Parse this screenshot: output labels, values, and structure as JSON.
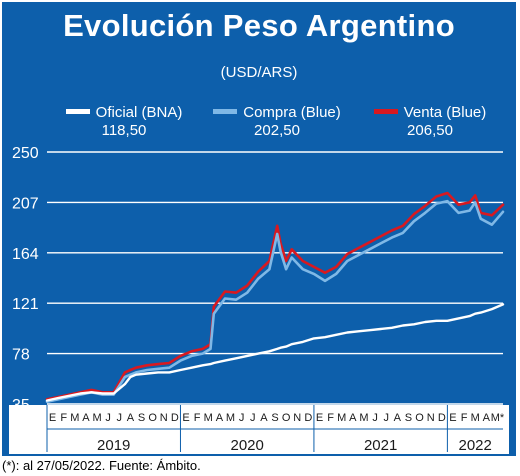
{
  "header": {
    "title": "Evolución Peso Argentino"
  },
  "unit_label": "(USD/ARS)",
  "legend": [
    {
      "name": "Oficial (BNA)",
      "value": "118,50",
      "color": "#ffffff"
    },
    {
      "name": "Compra (Blue)",
      "value": "202,50",
      "color": "#7fb8e6"
    },
    {
      "name": "Venta (Blue)",
      "value": "206,50",
      "color": "#d81920"
    }
  ],
  "footnote": "(*): al 27/05/2022. Fuente: Ámbito.",
  "chart_data": {
    "type": "line",
    "title": "Evolución Peso Argentino",
    "ylabel": "(USD/ARS)",
    "ylim": [
      35,
      250
    ],
    "yticks": [
      35,
      78,
      121,
      164,
      207,
      250
    ],
    "grid": true,
    "legend_position": "top",
    "month_labels": [
      "E",
      "F",
      "M",
      "A",
      "M",
      "J",
      "J",
      "A",
      "S",
      "O",
      "N",
      "D",
      "E",
      "F",
      "M",
      "A",
      "M",
      "J",
      "J",
      "A",
      "S",
      "O",
      "N",
      "D",
      "E",
      "F",
      "M",
      "A",
      "M",
      "J",
      "J",
      "A",
      "S",
      "O",
      "N",
      "D",
      "E",
      "F",
      "M",
      "A",
      "M*"
    ],
    "years": [
      {
        "label": "2019",
        "start": 0,
        "end": 12
      },
      {
        "label": "2020",
        "start": 12,
        "end": 24
      },
      {
        "label": "2021",
        "start": 24,
        "end": 36
      },
      {
        "label": "2022",
        "start": 36,
        "end": 41
      }
    ],
    "x": [
      0,
      1,
      2,
      3,
      4,
      5,
      6,
      7,
      7.5,
      8,
      9,
      10,
      11,
      12,
      13,
      14,
      14.7,
      15,
      16,
      17,
      18,
      19,
      20,
      20.7,
      21,
      21.5,
      22,
      23,
      24,
      25,
      26,
      27,
      28,
      29,
      30,
      31,
      32,
      33,
      34,
      35,
      36,
      37,
      38,
      38.5,
      39,
      40,
      41
    ],
    "series": [
      {
        "name": "Oficial (BNA)",
        "color": "#ffffff",
        "values": [
          38,
          40,
          42,
          44,
          45,
          44,
          44,
          52,
          58,
          60,
          61,
          62,
          62,
          64,
          66,
          68,
          69,
          70,
          72,
          74,
          76,
          78,
          80,
          82,
          83,
          84,
          86,
          88,
          91,
          92,
          94,
          96,
          97,
          98,
          99,
          100,
          102,
          103,
          105,
          106,
          106,
          108,
          110,
          112,
          113,
          116,
          120
        ]
      },
      {
        "name": "Compra (Blue)",
        "color": "#7fb8e6",
        "values": [
          37,
          39,
          41,
          43,
          45,
          43,
          43,
          58,
          60,
          62,
          64,
          65,
          66,
          72,
          76,
          78,
          82,
          112,
          125,
          124,
          130,
          142,
          150,
          180,
          165,
          150,
          160,
          150,
          146,
          140,
          146,
          157,
          162,
          167,
          172,
          177,
          181,
          191,
          198,
          206,
          208,
          198,
          200,
          207,
          193,
          188,
          199
        ]
      },
      {
        "name": "Venta (Blue)",
        "color": "#d81920",
        "values": [
          39,
          41,
          43,
          45,
          47,
          45,
          45,
          62,
          64,
          66,
          68,
          69,
          70,
          76,
          80,
          82,
          86,
          118,
          131,
          130,
          136,
          148,
          157,
          187,
          172,
          157,
          167,
          157,
          152,
          147,
          152,
          163,
          168,
          173,
          178,
          183,
          187,
          197,
          204,
          212,
          215,
          205,
          207,
          213,
          198,
          196,
          205
        ]
      }
    ]
  }
}
